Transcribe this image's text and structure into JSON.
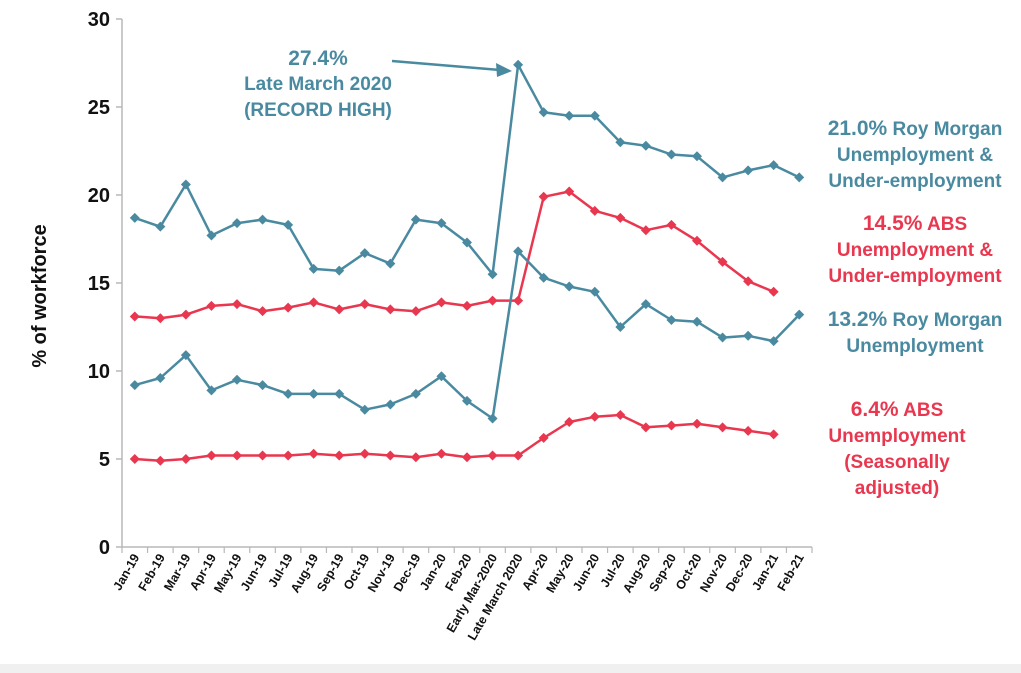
{
  "chart_data": {
    "type": "line",
    "title": "",
    "xlabel": "",
    "ylabel": "% of workforce",
    "ylim": [
      0,
      30
    ],
    "yticks": [
      "0",
      "5",
      "10",
      "15",
      "20",
      "25",
      "30"
    ],
    "categories": [
      "Jan-19",
      "Feb-19",
      "Mar-19",
      "Apr-19",
      "May-19",
      "Jun-19",
      "Jul-19",
      "Aug-19",
      "Sep-19",
      "Oct-19",
      "Nov-19",
      "Dec-19",
      "Jan-20",
      "Feb-20",
      "Early Mar-2020",
      "Late March 2020",
      "Apr-20",
      "May-20",
      "Jun-20",
      "Jul-20",
      "Aug-20",
      "Sep-20",
      "Oct-20",
      "Nov-20",
      "Dec-20",
      "Jan-21",
      "Feb-21"
    ],
    "series": [
      {
        "name": "Roy Morgan Unemployment & Under-employment",
        "color": "#4a8aa0",
        "values": [
          18.7,
          18.2,
          20.6,
          17.7,
          18.4,
          18.6,
          18.3,
          15.8,
          15.7,
          16.7,
          16.1,
          18.6,
          18.4,
          17.3,
          15.5,
          27.4,
          24.7,
          24.5,
          24.5,
          23.0,
          22.8,
          22.3,
          22.2,
          21.0,
          21.4,
          21.7,
          21.0
        ]
      },
      {
        "name": "ABS Unemployment & Under-employment",
        "color": "#e8374f",
        "values": [
          13.1,
          13.0,
          13.2,
          13.7,
          13.8,
          13.4,
          13.6,
          13.9,
          13.5,
          13.8,
          13.5,
          13.4,
          13.9,
          13.7,
          14.0,
          14.0,
          19.9,
          20.2,
          19.1,
          18.7,
          18.0,
          18.3,
          17.4,
          16.2,
          15.1,
          14.5,
          null
        ]
      },
      {
        "name": "Roy Morgan Unemployment",
        "color": "#4a8aa0",
        "values": [
          9.2,
          9.6,
          10.9,
          8.9,
          9.5,
          9.2,
          8.7,
          8.7,
          8.7,
          7.8,
          8.1,
          8.7,
          9.7,
          8.3,
          7.3,
          16.8,
          15.3,
          14.8,
          14.5,
          12.5,
          13.8,
          12.9,
          12.8,
          11.9,
          12.0,
          11.7,
          13.2
        ]
      },
      {
        "name": "ABS Unemployment (Seasonally adjusted)",
        "color": "#e8374f",
        "values": [
          5.0,
          4.9,
          5.0,
          5.2,
          5.2,
          5.2,
          5.2,
          5.3,
          5.2,
          5.3,
          5.2,
          5.1,
          5.3,
          5.1,
          5.2,
          5.2,
          6.2,
          7.1,
          7.4,
          7.5,
          6.8,
          6.9,
          7.0,
          6.8,
          6.6,
          6.4,
          null
        ]
      }
    ],
    "annotations": {
      "record": {
        "value": "27.4%",
        "line1": "Late March 2020",
        "line2": "(RECORD HIGH)"
      },
      "s1": {
        "value": "21.0%",
        "line1": "Roy Morgan",
        "line2": "Unemployment &",
        "line3": "Under-employment"
      },
      "s2": {
        "value": "14.5%",
        "line1": "ABS",
        "line2": "Unemployment &",
        "line3": "Under-employment"
      },
      "s3": {
        "value": "13.2%",
        "line1": "Roy Morgan",
        "line2": "Unemployment"
      },
      "s4": {
        "value": "6.4%",
        "line1": "ABS",
        "line2": "Unemployment",
        "line3": "(Seasonally",
        "line4": "adjusted)"
      }
    }
  }
}
